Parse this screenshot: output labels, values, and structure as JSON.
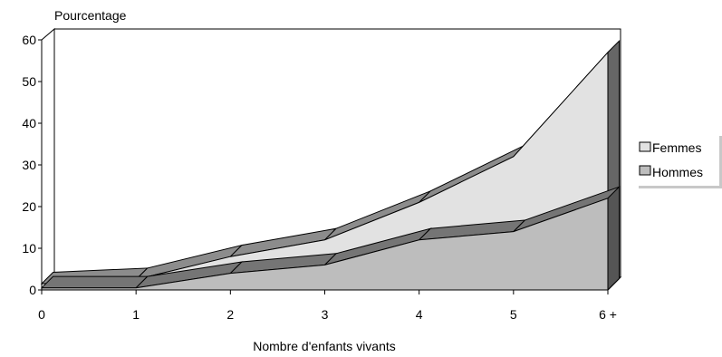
{
  "chart_data": {
    "type": "area",
    "title": "",
    "ylabel": "Pourcentage",
    "xlabel": "Nombre d'enfants vivants",
    "categories": [
      "0",
      "1",
      "2",
      "3",
      "4",
      "5",
      "6 +"
    ],
    "ylim": [
      0,
      60
    ],
    "yticks": [
      "0",
      "10",
      "20",
      "30",
      "40",
      "50",
      "60"
    ],
    "series": [
      {
        "name": "Femmes",
        "values": [
          1.5,
          2.5,
          8,
          12,
          21,
          32,
          57
        ],
        "color": "#e2e2e2"
      },
      {
        "name": "Hommes",
        "values": [
          0.5,
          0.5,
          4,
          6,
          12,
          14,
          22
        ],
        "color": "#bdbdbd"
      }
    ],
    "legend_position": "right",
    "grid": false
  }
}
